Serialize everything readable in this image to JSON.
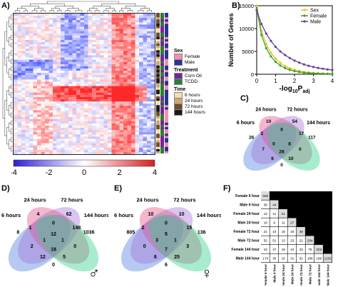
{
  "panels": {
    "a": "A)",
    "b": "B)",
    "c": "C)",
    "d": "D)",
    "e": "E)",
    "f": "F)"
  },
  "heatmap_legend": {
    "sex_title": "Sex",
    "sex_items": [
      {
        "label": "Female",
        "color": "#f48fb1"
      },
      {
        "label": "Male",
        "color": "#283593"
      }
    ],
    "treatment_title": "Treatment",
    "treatment_items": [
      {
        "label": "Corn Oil",
        "color": "#7b1fa2"
      },
      {
        "label": "TCDD",
        "color": "#2e7d32"
      }
    ],
    "time_title": "Time",
    "time_items": [
      {
        "label": "6 hours",
        "color": "#f5deb3"
      },
      {
        "label": "24 hours",
        "color": "#c8a97a"
      },
      {
        "label": "72 hours",
        "color": "#6d4c2f"
      },
      {
        "label": "144 hours",
        "color": "#1a1a1a"
      }
    ],
    "scale_ticks": [
      "-4",
      "-2",
      "0",
      "2",
      "4"
    ],
    "scale_low_color": "#2c1fd8",
    "scale_mid_color": "#ffffff",
    "scale_high_color": "#d81f1f"
  },
  "chart_data": {
    "type": "line",
    "ylabel": "Number of Genes",
    "xlabel_main": "-log",
    "xlabel_sub": "10",
    "xlabel_main2": "P",
    "xlabel_sub2": "adj",
    "x_ticks": [
      "0",
      "1",
      "2",
      "3",
      "4"
    ],
    "y_ticks": [
      "0",
      "5000",
      "10000",
      "15000"
    ],
    "xlim": [
      0,
      4
    ],
    "ylim": [
      0,
      15000
    ],
    "legend_position": "top-right",
    "series": [
      {
        "name": "Sex",
        "color": "#e6c619",
        "x": [
          0,
          0.25,
          0.5,
          0.75,
          1,
          1.25,
          1.5,
          1.75,
          2,
          2.25,
          2.5,
          2.75,
          3,
          3.25,
          3.5,
          3.75,
          4
        ],
        "values": [
          15000,
          9500,
          6600,
          4700,
          3400,
          2500,
          1800,
          1300,
          950,
          700,
          520,
          390,
          300,
          230,
          180,
          140,
          110
        ]
      },
      {
        "name": "Female",
        "color": "#3aa335",
        "x": [
          0,
          0.25,
          0.5,
          0.75,
          1,
          1.25,
          1.5,
          1.75,
          2,
          2.25,
          2.5,
          2.75,
          3,
          3.25,
          3.5,
          3.75,
          4
        ],
        "values": [
          14500,
          8600,
          5700,
          3900,
          2700,
          1900,
          1350,
          950,
          680,
          480,
          350,
          260,
          190,
          140,
          110,
          80,
          60
        ]
      },
      {
        "name": "Male",
        "color": "#6a3d9a",
        "x": [
          0,
          0.25,
          0.5,
          0.75,
          1,
          1.25,
          1.5,
          1.75,
          2,
          2.25,
          2.5,
          2.75,
          3,
          3.25,
          3.5,
          3.75,
          4
        ],
        "values": [
          14000,
          11000,
          8900,
          7300,
          6000,
          5000,
          4200,
          3550,
          3000,
          2550,
          2150,
          1850,
          1600,
          1380,
          1200,
          1050,
          930
        ]
      }
    ]
  },
  "venn_c": {
    "sets": [
      "6 hours",
      "24 hours",
      "72 hours",
      "144 hours"
    ],
    "numbers": [
      "26",
      "10",
      "54",
      "117",
      "2",
      "0",
      "17",
      "7",
      "0",
      "28",
      "8",
      "0",
      "6",
      "0",
      "10"
    ]
  },
  "venn_d": {
    "sets": [
      "6 hours",
      "24 hours",
      "72 hours",
      "144 hours"
    ],
    "numbers": [
      "8",
      "4",
      "62",
      "1036",
      "1",
      "0",
      "148",
      "2",
      "1",
      "18",
      "1",
      "0",
      "12",
      "0",
      "5",
      "12"
    ],
    "symbol": "♂"
  },
  "venn_e": {
    "sets": [
      "6 hours",
      "24 hours",
      "72 hours",
      "144 hours"
    ],
    "numbers": [
      "805",
      "10",
      "10",
      "136",
      "2",
      "0",
      "15",
      "0",
      "3",
      "7",
      "1",
      "3",
      "8",
      "6",
      "25",
      "5"
    ],
    "symbol": "♀"
  },
  "matrix_f": {
    "labels": [
      "Female 6 hour",
      "Male 6 hour",
      "Female 24 hour",
      "Male 24 hour",
      "Female 72 hour",
      "Male 72 hour",
      "Female 144 hour",
      "Male 144 hour"
    ],
    "rows": [
      [
        "693"
      ],
      [
        "38",
        "44"
      ],
      [
        "12",
        "11",
        "21"
      ],
      [
        "18",
        "9",
        "11",
        "27"
      ],
      [
        "21",
        "10",
        "18",
        "16",
        "48"
      ],
      [
        "52",
        "51",
        "13",
        "23",
        "22",
        "204"
      ],
      [
        "43",
        "27",
        "19",
        "24",
        "33",
        "76",
        "203"
      ],
      [
        "174",
        "35",
        "15",
        "31",
        "32",
        "186",
        "199",
        "1232"
      ]
    ]
  }
}
